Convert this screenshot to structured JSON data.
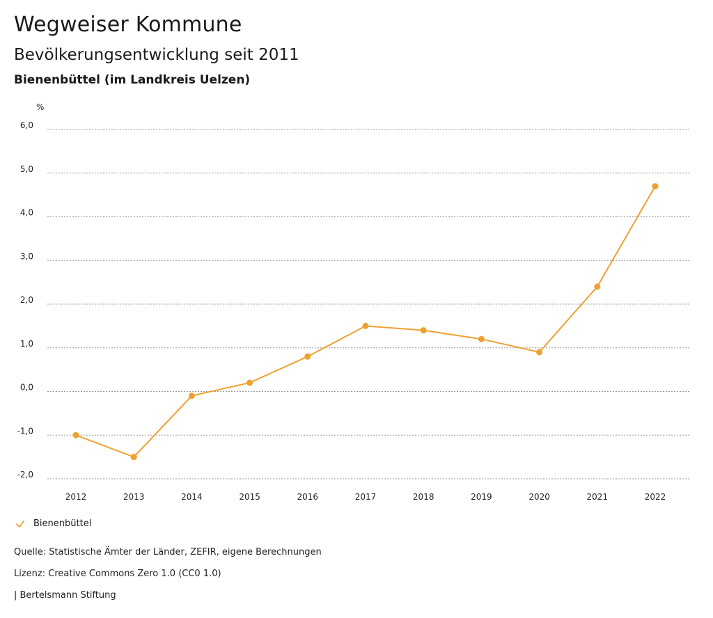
{
  "header": {
    "title": "Wegweiser Kommune",
    "subtitle": "Bevölkerungsentwicklung seit 2011",
    "region": "Bienenbüttel (im Landkreis Uelzen)"
  },
  "chart_data": {
    "type": "line",
    "title": "Bevölkerungsentwicklung seit 2011",
    "ylabel": "%",
    "xlabel": "",
    "ylim": [
      -2.0,
      6.0
    ],
    "yticks": [
      "6,0",
      "5,0",
      "4,0",
      "3,0",
      "2,0",
      "1,0",
      "0,0",
      "-1,0",
      "-2,0"
    ],
    "ytick_values": [
      6,
      5,
      4,
      3,
      2,
      1,
      0,
      -1,
      -2
    ],
    "categories": [
      "2012",
      "2013",
      "2014",
      "2015",
      "2016",
      "2017",
      "2018",
      "2019",
      "2020",
      "2021",
      "2022"
    ],
    "series": [
      {
        "name": "Bienenbüttel",
        "color": "#f0a030",
        "values": [
          -1.0,
          -1.5,
          -0.1,
          0.2,
          0.8,
          1.5,
          1.4,
          1.2,
          0.9,
          2.4,
          4.7
        ]
      }
    ],
    "grid": true,
    "legend": "bottom-left"
  },
  "legend": {
    "icon": "check-icon",
    "label": "Bienenbüttel"
  },
  "footer": {
    "source": "Quelle: Statistische Ämter der Länder, ZEFIR, eigene Berechnungen",
    "license": "Lizenz: Creative Commons Zero 1.0 (CC0 1.0)",
    "publisher": "| Bertelsmann Stiftung"
  }
}
